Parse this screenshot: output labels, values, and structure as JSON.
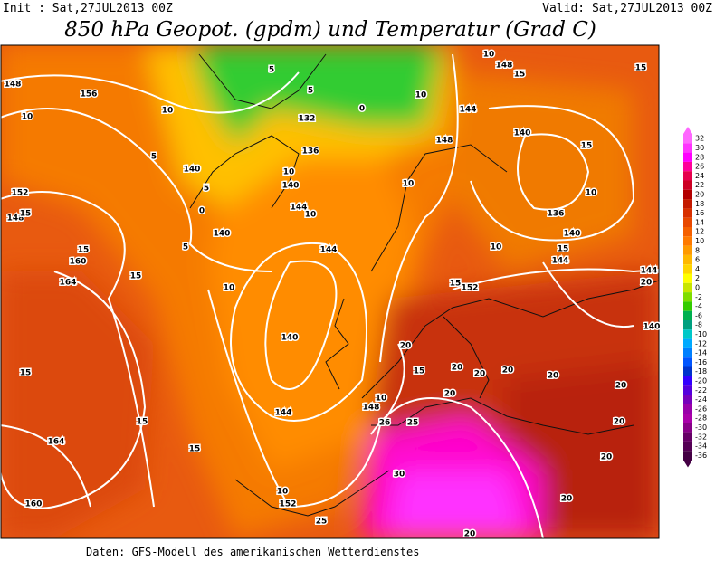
{
  "header": {
    "init": "Init : Sat,27JUL2013 00Z",
    "valid": "Valid: Sat,27JUL2013 00Z",
    "title": "850 hPa Geopot. (gpdm) und Temperatur (Grad C)"
  },
  "footer": "Daten: GFS-Modell des amerikanischen Wetterdienstes",
  "colorbar": {
    "labels": [
      32,
      30,
      28,
      26,
      24,
      22,
      20,
      18,
      16,
      14,
      12,
      10,
      8,
      6,
      4,
      2,
      0,
      -2,
      -4,
      -6,
      -8,
      -10,
      -12,
      -14,
      -16,
      -18,
      -20,
      -22,
      -24,
      -26,
      -28,
      -30,
      -32,
      -34,
      -36
    ],
    "colors": [
      "#ff66ff",
      "#ff33ff",
      "#ff00ff",
      "#ff0099",
      "#e6004c",
      "#cc0022",
      "#b30000",
      "#c41a00",
      "#d83000",
      "#e84800",
      "#f56000",
      "#ff7a00",
      "#ff9a00",
      "#ffb800",
      "#ffd500",
      "#ffff00",
      "#c8e600",
      "#7fdd00",
      "#33cc00",
      "#00b050",
      "#00a080",
      "#00c8c8",
      "#00aaff",
      "#0080ff",
      "#0055ff",
      "#0033cc",
      "#3300ff",
      "#5500dd",
      "#7700bb",
      "#9900aa",
      "#aa00aa",
      "#880088",
      "#660066",
      "#550055",
      "#440044"
    ]
  },
  "contour_labels": [
    "148",
    "156",
    "10",
    "5",
    "10",
    "5",
    "140",
    "0",
    "5",
    "140",
    "5",
    "152",
    "148",
    "15",
    "15",
    "160",
    "164",
    "15",
    "10",
    "144",
    "140",
    "144",
    "15",
    "15",
    "164",
    "15",
    "10",
    "152",
    "160",
    "25",
    "30",
    "25",
    "26",
    "148",
    "10",
    "20",
    "15",
    "20",
    "20",
    "20",
    "20",
    "20",
    "20",
    "20",
    "20",
    "20",
    "20",
    "152",
    "15",
    "140",
    "136",
    "140",
    "10",
    "15",
    "15",
    "10",
    "10",
    "148",
    "144",
    "15",
    "15",
    "148",
    "10",
    "0",
    "5",
    "132",
    "136",
    "140",
    "144",
    "10",
    "10",
    "144",
    "144",
    "140",
    "20",
    "10"
  ]
}
